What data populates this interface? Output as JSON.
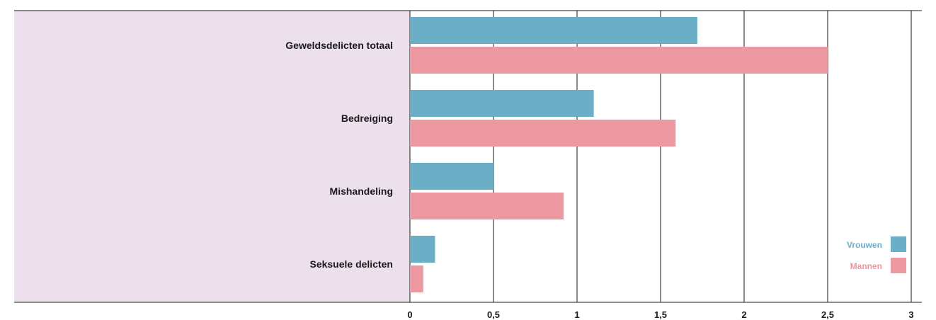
{
  "chart_data": {
    "type": "bar",
    "orientation": "horizontal",
    "categories": [
      "Geweldsdelicten totaal",
      "Bedreiging",
      "Mishandeling",
      "Seksuele delicten"
    ],
    "series": [
      {
        "name": "Vrouwen",
        "color": "#6aafc5",
        "values": [
          1.72,
          1.1,
          0.5,
          0.15
        ]
      },
      {
        "name": "Mannen",
        "color": "#ec99a1",
        "values": [
          2.5,
          1.59,
          0.92,
          0.08
        ]
      }
    ],
    "xticks": [
      "0",
      "0,5",
      "1",
      "1,5",
      "2",
      "2,5",
      "3"
    ],
    "xlim": [
      0,
      3
    ],
    "grid": true,
    "legend_position": "bottom-right",
    "label_panel_color": "#ebe0ec"
  }
}
